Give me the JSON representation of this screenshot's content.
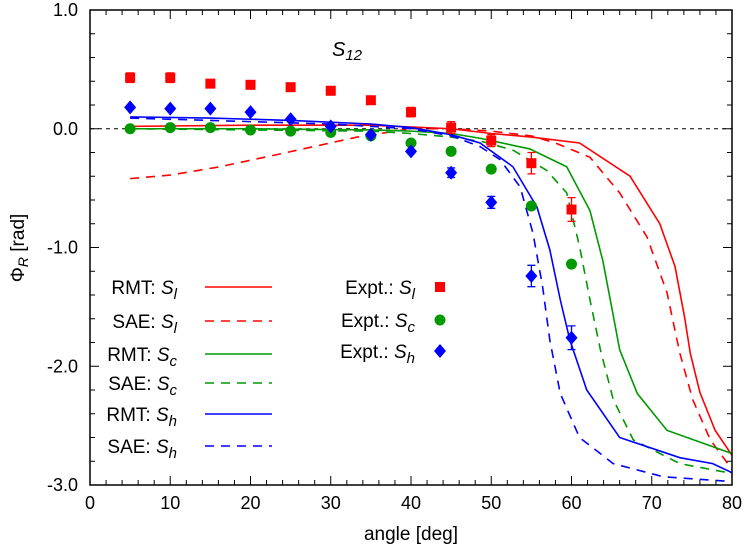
{
  "chart_data": {
    "type": "line",
    "title": {
      "sym": "S",
      "sub": "12"
    },
    "xlabel": "angle [deg]",
    "ylabel": {
      "sym": "Φ",
      "sub": "R",
      "unit": " [rad]"
    },
    "xlim": [
      0,
      80
    ],
    "ylim": [
      -3.0,
      1.0
    ],
    "xticks": [
      0,
      10,
      20,
      30,
      40,
      50,
      60,
      70,
      80
    ],
    "xtick_labels": [
      "0",
      "10",
      "20",
      "30",
      "40",
      "50",
      "60",
      "70",
      "80"
    ],
    "yticks": [
      1.0,
      0.0,
      -1.0,
      -2.0,
      -3.0
    ],
    "ytick_labels": [
      "1.0",
      "0.0",
      "-1.0",
      "-2.0",
      "-3.0"
    ],
    "grid": false,
    "reference_line": {
      "y": 0.0,
      "style": "dashed",
      "color": "#000000"
    },
    "legend_position": "left-bottom",
    "series": [
      {
        "name": "RMT: S_l",
        "kind": "line",
        "style": "solid",
        "color": "#ff0000",
        "x": [
          5,
          20,
          35,
          45,
          50,
          55,
          61,
          67.3,
          71,
          72.9,
          74.1,
          74.8,
          76,
          77.9,
          79.8,
          80
        ],
        "y": [
          0.02,
          0.03,
          0.03,
          0.0,
          -0.04,
          -0.07,
          -0.12,
          -0.4,
          -0.8,
          -1.16,
          -1.59,
          -1.89,
          -2.22,
          -2.54,
          -2.73,
          -2.75
        ]
      },
      {
        "name": "SAE: S_l",
        "kind": "line",
        "style": "dashed",
        "color": "#ff0000",
        "x": [
          5,
          10,
          16.2,
          24.5,
          33.3,
          40,
          45,
          50,
          55,
          58,
          62.3,
          66,
          69.4,
          71.9,
          73.5,
          75.1,
          77.3,
          79.8,
          80
        ],
        "y": [
          -0.42,
          -0.39,
          -0.32,
          -0.2,
          -0.07,
          0.0,
          0.0,
          -0.02,
          -0.06,
          -0.12,
          -0.24,
          -0.54,
          -0.91,
          -1.38,
          -1.89,
          -2.28,
          -2.62,
          -2.85,
          -2.87
        ]
      },
      {
        "name": "RMT: S_c",
        "kind": "line",
        "style": "solid",
        "color": "#009900",
        "x": [
          5,
          20,
          35,
          40,
          45,
          48.6,
          54.8,
          59.4,
          62.3,
          63.9,
          65,
          66,
          68.2,
          71.9,
          79.8,
          80
        ],
        "y": [
          0.0,
          0.0,
          -0.01,
          -0.02,
          -0.04,
          -0.08,
          -0.17,
          -0.32,
          -0.69,
          -1.11,
          -1.5,
          -1.86,
          -2.23,
          -2.54,
          -2.73,
          -2.74
        ]
      },
      {
        "name": "SAE: S_c",
        "kind": "line",
        "style": "dashed",
        "color": "#009900",
        "x": [
          5,
          20,
          35,
          40,
          45,
          49,
          52.7,
          56.9,
          59.4,
          61,
          62.3,
          63.6,
          65.2,
          67.7,
          73.5,
          79.8,
          80
        ],
        "y": [
          0.0,
          -0.01,
          -0.02,
          -0.04,
          -0.07,
          -0.11,
          -0.18,
          -0.35,
          -0.54,
          -0.99,
          -1.44,
          -1.86,
          -2.28,
          -2.62,
          -2.82,
          -2.9,
          -2.9
        ]
      },
      {
        "name": "RMT: S_h",
        "kind": "line",
        "style": "solid",
        "color": "#0000ff",
        "x": [
          5,
          15,
          25,
          35,
          40,
          45,
          48.6,
          52.7,
          55.7,
          57.3,
          58.6,
          59.8,
          61.9,
          66,
          73.5,
          77.6,
          79.8,
          80
        ],
        "y": [
          0.1,
          0.09,
          0.07,
          0.04,
          0.01,
          -0.05,
          -0.12,
          -0.32,
          -0.66,
          -1.02,
          -1.44,
          -1.78,
          -2.2,
          -2.6,
          -2.77,
          -2.82,
          -2.89,
          -2.9
        ]
      },
      {
        "name": "SAE: S_h",
        "kind": "line",
        "style": "dashed",
        "color": "#0000ff",
        "x": [
          5,
          20,
          30,
          40,
          45,
          48.6,
          51.1,
          53.6,
          55.2,
          56.4,
          57.3,
          58.6,
          61,
          65.2,
          71.4,
          79.8,
          80
        ],
        "y": [
          0.09,
          0.06,
          0.04,
          0.0,
          -0.06,
          -0.15,
          -0.26,
          -0.49,
          -0.88,
          -1.33,
          -1.78,
          -2.23,
          -2.6,
          -2.82,
          -2.93,
          -2.97,
          -2.97
        ]
      },
      {
        "name": "Expt.: S_l",
        "kind": "scatter",
        "marker": "square",
        "color": "#ff0000",
        "x": [
          5,
          10,
          15,
          20,
          25,
          30,
          35,
          40,
          45,
          50,
          55,
          60
        ],
        "y": [
          0.43,
          0.43,
          0.38,
          0.37,
          0.35,
          0.32,
          0.24,
          0.14,
          0.01,
          -0.1,
          -0.29,
          -0.68
        ],
        "yerr": [
          0.04,
          0.04,
          0.02,
          0.02,
          0.02,
          0.03,
          0.03,
          0.04,
          0.05,
          0.05,
          0.09,
          0.1
        ]
      },
      {
        "name": "Expt.: S_c",
        "kind": "scatter",
        "marker": "circle",
        "color": "#009900",
        "x": [
          5,
          10,
          15,
          20,
          25,
          30,
          35,
          40,
          45,
          50,
          55,
          60
        ],
        "y": [
          0.0,
          0.01,
          0.01,
          -0.01,
          -0.02,
          -0.03,
          -0.06,
          -0.12,
          -0.19,
          -0.34,
          -0.65,
          -1.14
        ],
        "yerr": [
          0.01,
          0.01,
          0.01,
          0.01,
          0.01,
          0.01,
          0.01,
          0.01,
          0.01,
          0.01,
          0.01,
          0.02
        ]
      },
      {
        "name": "Expt.: S_h",
        "kind": "scatter",
        "marker": "diamond",
        "color": "#0000ff",
        "x": [
          5,
          10,
          15,
          20,
          25,
          30,
          35,
          40,
          45,
          50,
          55,
          60
        ],
        "y": [
          0.18,
          0.17,
          0.17,
          0.14,
          0.08,
          0.02,
          -0.05,
          -0.19,
          -0.37,
          -0.62,
          -1.24,
          -1.76
        ],
        "yerr": [
          0.02,
          0.02,
          0.02,
          0.02,
          0.02,
          0.02,
          0.02,
          0.03,
          0.04,
          0.05,
          0.09,
          0.1
        ]
      }
    ]
  }
}
